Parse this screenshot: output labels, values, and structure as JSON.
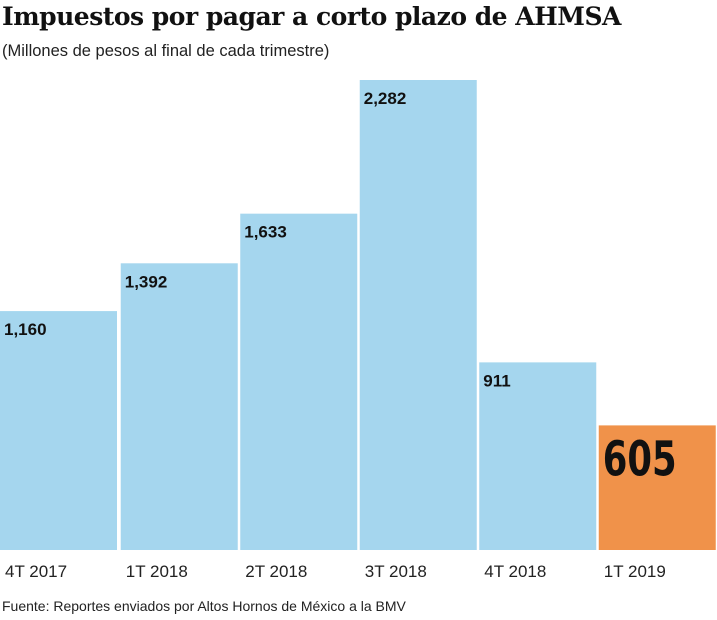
{
  "chart_data": {
    "type": "bar",
    "title": "Impuestos por pagar a corto plazo de AHMSA",
    "subtitle": "(Millones de pesos al final de cada trimestre)",
    "categories": [
      "4T 2017",
      "1T 2018",
      "2T 2018",
      "3T 2018",
      "4T 2018",
      "1T 2019"
    ],
    "values": [
      1160,
      1392,
      1633,
      2282,
      911,
      605
    ],
    "data_labels": [
      "1,160",
      "1,392",
      "1,633",
      "2,282",
      "911",
      "605"
    ],
    "highlight_index": 5,
    "colors": {
      "default": "#a5d6ee",
      "highlight": "#f0924a"
    },
    "grid": false,
    "source": "Fuente: Reportes enviados por Altos Hornos de México a la BMV"
  }
}
